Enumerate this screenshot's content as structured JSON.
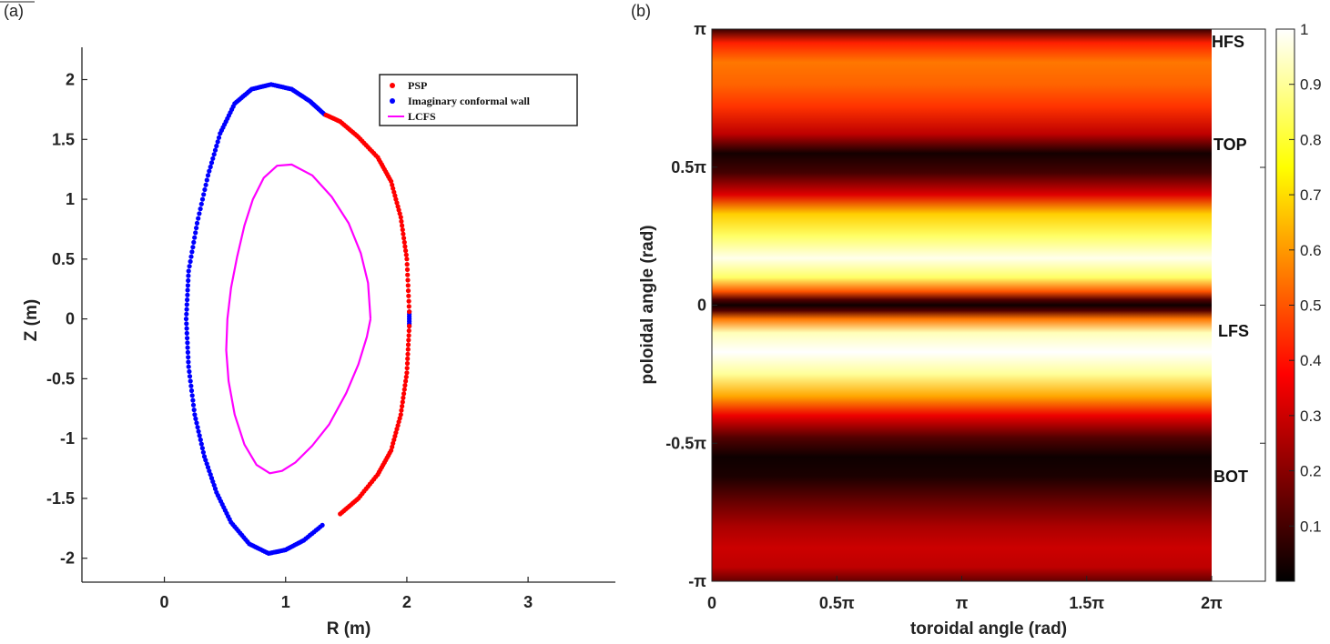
{
  "chart_data": [
    {
      "type": "scatter",
      "panel_label": "(a)",
      "xlabel": "R (m)",
      "ylabel": "Z (m)",
      "xlim": [
        -0.68,
        3.72
      ],
      "ylim": [
        -2.2,
        2.27
      ],
      "xticks": [
        0,
        1,
        2,
        3
      ],
      "yticks": [
        2,
        1.5,
        1,
        0.5,
        0,
        -0.5,
        -1,
        -1.5,
        -2
      ],
      "legend_position": "top-right",
      "series": [
        {
          "name": "PSP",
          "color": "#ff0000",
          "kind": "points",
          "x": [
            2.02,
            2.0,
            1.95,
            1.87,
            1.76,
            1.6,
            1.45,
            1.32,
            1.45,
            1.6,
            1.76,
            1.87,
            1.95,
            2.0,
            2.02
          ],
          "y": [
            0.06,
            0.5,
            0.85,
            1.15,
            1.35,
            1.52,
            1.65,
            1.71,
            -1.63,
            -1.5,
            -1.3,
            -1.1,
            -0.8,
            -0.45,
            -0.06
          ]
        },
        {
          "name": "Imaginary conformal wall",
          "color": "#0000ff",
          "kind": "points",
          "x": [
            1.32,
            1.2,
            1.05,
            0.88,
            0.72,
            0.58,
            0.46,
            0.36,
            0.27,
            0.2,
            0.18,
            0.2,
            0.25,
            0.33,
            0.43,
            0.55,
            0.7,
            0.86,
            1.0,
            1.15,
            1.32,
            2.02,
            2.02
          ],
          "y": [
            1.71,
            1.82,
            1.92,
            1.96,
            1.92,
            1.8,
            1.55,
            1.2,
            0.8,
            0.4,
            0.0,
            -0.4,
            -0.8,
            -1.15,
            -1.45,
            -1.7,
            -1.88,
            -1.96,
            -1.93,
            -1.85,
            -1.71,
            0.06,
            -0.06
          ]
        },
        {
          "name": "LCFS",
          "color": "#ff00ff",
          "kind": "line",
          "x": [
            1.7,
            1.68,
            1.62,
            1.52,
            1.38,
            1.22,
            1.05,
            0.93,
            0.82,
            0.73,
            0.66,
            0.6,
            0.55,
            0.52,
            0.51,
            0.53,
            0.58,
            0.66,
            0.76,
            0.87,
            0.97,
            1.08,
            1.22,
            1.36,
            1.5,
            1.6,
            1.67,
            1.7
          ],
          "y": [
            0.0,
            0.3,
            0.55,
            0.8,
            1.02,
            1.2,
            1.29,
            1.28,
            1.18,
            1.0,
            0.78,
            0.52,
            0.26,
            0.0,
            -0.26,
            -0.52,
            -0.8,
            -1.05,
            -1.22,
            -1.29,
            -1.27,
            -1.2,
            -1.06,
            -0.88,
            -0.62,
            -0.38,
            -0.15,
            0.0
          ]
        }
      ]
    },
    {
      "type": "heatmap",
      "panel_label": "(b)",
      "xlabel": "toroidal angle (rad)",
      "ylabel": "poloidal angle (rad)",
      "xlim_pi": [
        0,
        2
      ],
      "ylim_pi": [
        -1,
        1
      ],
      "xtick_labels": [
        "0",
        "0.5π",
        "π",
        "1.5π",
        "2π"
      ],
      "ytick_labels": [
        "π",
        "0.5π",
        "0",
        "-0.5π",
        "-π"
      ],
      "colormap": "hot",
      "clim": [
        0,
        1
      ],
      "colorbar_ticks": [
        "1",
        "0.9",
        "0.8",
        "0.7",
        "0.6",
        "0.5",
        "0.4",
        "0.3",
        "0.2",
        "0.1"
      ],
      "region_labels": [
        "HFS",
        "TOP",
        "LFS",
        "BOT"
      ],
      "profile_poloidal_pi": [
        1.0,
        0.95,
        0.88,
        0.8,
        0.72,
        0.62,
        0.55,
        0.48,
        0.4,
        0.33,
        0.25,
        0.17,
        0.1,
        0.05,
        0.02,
        0.0,
        -0.02,
        -0.05,
        -0.1,
        -0.17,
        -0.25,
        -0.33,
        -0.4,
        -0.48,
        -0.55,
        -0.62,
        -0.72,
        -0.8,
        -0.88,
        -0.95,
        -1.0
      ],
      "profile_values": [
        0.08,
        0.42,
        0.55,
        0.52,
        0.45,
        0.28,
        0.03,
        0.1,
        0.33,
        0.68,
        0.85,
        0.98,
        0.85,
        0.5,
        0.12,
        0.02,
        0.12,
        0.55,
        0.93,
        1.0,
        0.9,
        0.62,
        0.35,
        0.12,
        0.02,
        0.04,
        0.16,
        0.25,
        0.3,
        0.28,
        0.15
      ]
    }
  ]
}
